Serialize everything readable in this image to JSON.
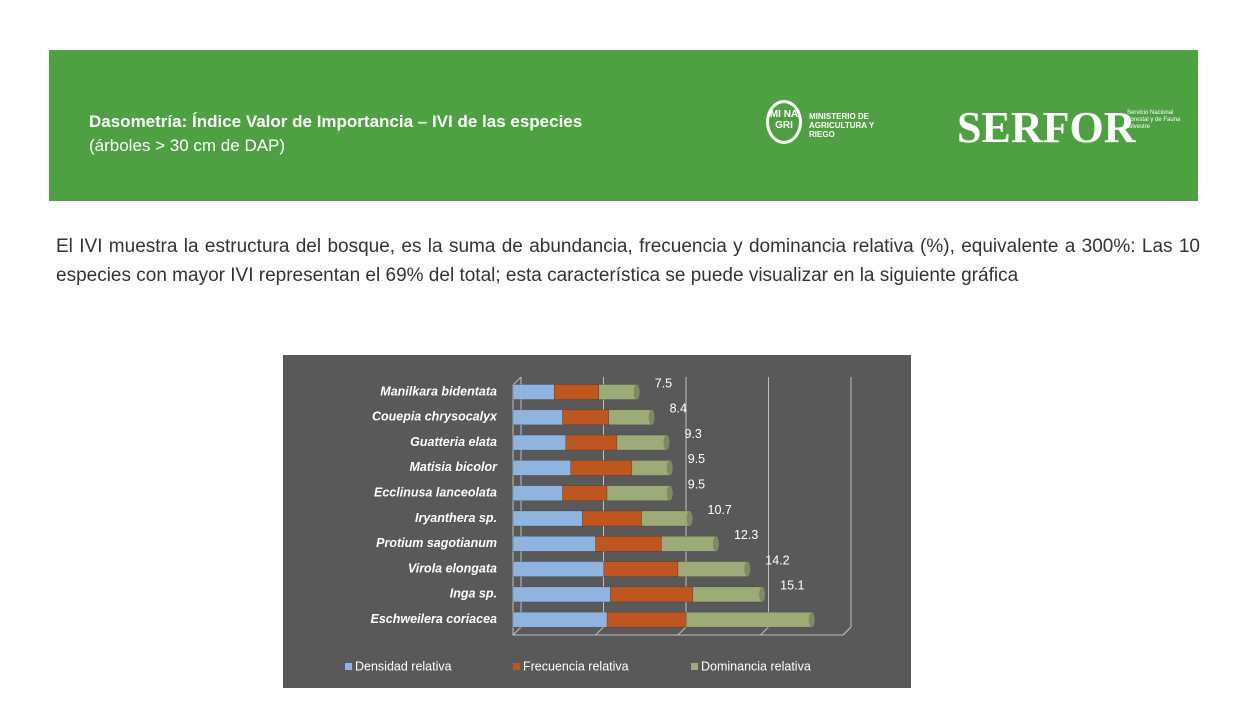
{
  "header": {
    "title": "Dasometría: Índice Valor de Importancia – IVI de las especies",
    "subtitle": "(árboles > 30 cm de DAP)",
    "logo_minagri": "MI NA GRI",
    "logo_ministerio": "MINISTERIO DE AGRICULTURA Y RIEGO",
    "logo_serfor": "SERFOR",
    "logo_serfor_sub": "Servicio Nacional Forestal y de Fauna Silvestre"
  },
  "paragraph": "El  IVI muestra la estructura del bosque, es la suma de abundancia, frecuencia y dominancia relativa (%), equivalente a 300%: Las 10 especies con mayor IVI representan el 69% del total; esta característica se puede visualizar en la siguiente gráfica",
  "chart_data": {
    "type": "stacked_bar_horizontal",
    "categories": [
      "Manilkara bidentata",
      "Couepia chrysocalyx",
      "Guatteria elata",
      "Matisia bicolor",
      "Ecclinusa lanceolata",
      "Iryanthera sp.",
      "Protium sagotianum",
      "Virola elongata",
      "Inga sp.",
      "Eschweilera coriacea"
    ],
    "series": [
      {
        "name": "Densidad relativa",
        "color": "#8fb4e0",
        "values": [
          2.5,
          3.0,
          3.2,
          3.5,
          3.0,
          4.2,
          5.0,
          5.5,
          5.9,
          5.7
        ]
      },
      {
        "name": "Frecuencia relativa",
        "color": "#c0561f",
        "values": [
          2.7,
          2.8,
          3.1,
          3.7,
          2.7,
          3.6,
          4.0,
          4.5,
          5.0,
          4.8
        ]
      },
      {
        "name": "Dominancia relativa",
        "color": "#9dab78",
        "values": [
          2.3,
          2.6,
          3.0,
          2.3,
          3.8,
          2.9,
          3.3,
          4.2,
          4.2,
          7.6
        ]
      }
    ],
    "totals": [
      7.5,
      8.4,
      9.3,
      9.5,
      9.5,
      10.7,
      12.3,
      14.2,
      15.1,
      null
    ],
    "xlim": [
      0,
      20
    ],
    "xticks": [
      0,
      5,
      10,
      15,
      20
    ],
    "grid": true,
    "legend": "bottom"
  }
}
